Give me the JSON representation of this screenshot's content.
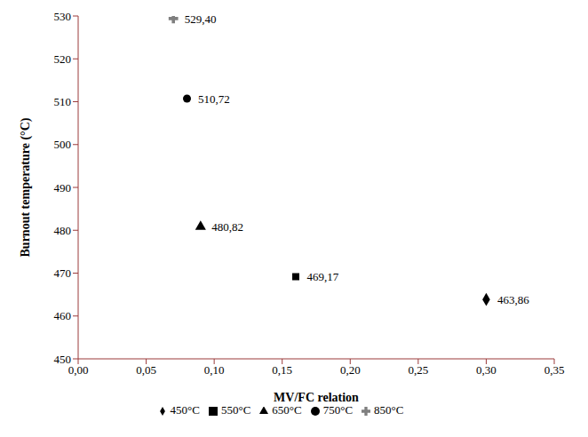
{
  "chart_data": {
    "type": "scatter",
    "x_label": "MV/FC relation",
    "y_label": "Burnout temperature (°C)",
    "xlim": [
      0,
      0.35
    ],
    "xticks": [
      {
        "value": 0,
        "label": "0,00"
      },
      {
        "value": 0.05,
        "label": "0,05"
      },
      {
        "value": 0.1,
        "label": "0,10"
      },
      {
        "value": 0.15,
        "label": "0,15"
      },
      {
        "value": 0.2,
        "label": "0,20"
      },
      {
        "value": 0.25,
        "label": "0,25"
      },
      {
        "value": 0.3,
        "label": "0,30"
      },
      {
        "value": 0.35,
        "label": "0,35"
      }
    ],
    "ylim": [
      450,
      530
    ],
    "yticks": [
      450,
      460,
      470,
      480,
      490,
      500,
      510,
      520,
      530
    ],
    "grid": false,
    "legend": "bottom",
    "data_labels": true,
    "series": [
      {
        "name": "450°C",
        "color": "#000000",
        "marker": "diamond",
        "x": [
          0.3
        ],
        "values": [
          463.86
        ],
        "value_labels": [
          "463,86"
        ]
      },
      {
        "name": "550°C",
        "color": "#000000",
        "marker": "square",
        "x": [
          0.16
        ],
        "values": [
          469.17
        ],
        "value_labels": [
          "469,17"
        ]
      },
      {
        "name": "650°C",
        "color": "#000000",
        "marker": "triangle",
        "x": [
          0.09
        ],
        "values": [
          480.82
        ],
        "value_labels": [
          "480,82"
        ]
      },
      {
        "name": "750°C",
        "color": "#000000",
        "marker": "circle",
        "x": [
          0.08
        ],
        "values": [
          510.72
        ],
        "value_labels": [
          "510,72"
        ]
      },
      {
        "name": "850°C",
        "color": "#7f7f7f",
        "marker": "cross",
        "x": [
          0.07
        ],
        "values": [
          529.4
        ],
        "value_labels": [
          "529,40"
        ]
      }
    ]
  }
}
